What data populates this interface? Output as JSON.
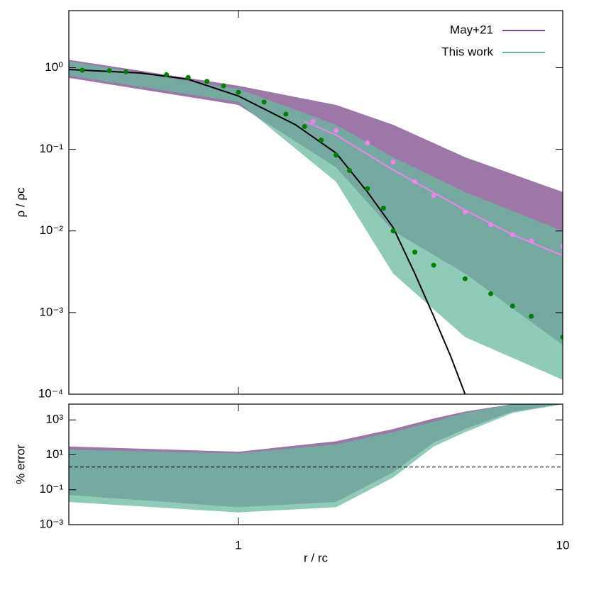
{
  "chart_data": [
    {
      "type": "line",
      "ylabel": "ρ / ρc",
      "xscale": "log",
      "yscale": "log",
      "xlim": [
        0.3,
        10
      ],
      "ylim": [
        0.0001,
        5
      ],
      "xticks": [
        1,
        10
      ],
      "yticks": [
        {
          "value": 1,
          "label": "10⁰"
        },
        {
          "value": 0.1,
          "label": "10⁻¹"
        },
        {
          "value": 0.01,
          "label": "10⁻²"
        },
        {
          "value": 0.001,
          "label": "10⁻³"
        },
        {
          "value": 0.0001,
          "label": "10⁻⁴"
        }
      ],
      "legend": "upper right",
      "series": [
        {
          "name": "May+21",
          "style": "band",
          "color": "#7b4a8b",
          "x": [
            0.3,
            1,
            2,
            3,
            5,
            10
          ],
          "upper": [
            1.25,
            0.6,
            0.35,
            0.2,
            0.08,
            0.03
          ],
          "lower": [
            0.75,
            0.35,
            0.06,
            0.01,
            0.003,
            0.0004
          ]
        },
        {
          "name": "This work",
          "style": "band",
          "color": "#6ab99f",
          "x": [
            0.3,
            1,
            2,
            3,
            5,
            10
          ],
          "upper": [
            1.2,
            0.55,
            0.2,
            0.08,
            0.03,
            0.01
          ],
          "lower": [
            0.8,
            0.38,
            0.04,
            0.003,
            0.0005,
            0.00015
          ]
        },
        {
          "style": "line",
          "color": "#000000",
          "x": [
            0.3,
            0.5,
            0.7,
            1,
            1.5,
            2,
            2.5,
            3,
            3.5,
            4,
            4.5,
            5
          ],
          "values": [
            0.95,
            0.86,
            0.72,
            0.45,
            0.2,
            0.09,
            0.03,
            0.011,
            0.003,
            0.0009,
            0.0003,
            0.0001
          ]
        },
        {
          "style": "line",
          "color": "#ee82ee",
          "x": [
            1.6,
            2,
            3,
            5,
            7,
            10
          ],
          "values": [
            0.22,
            0.15,
            0.056,
            0.018,
            0.009,
            0.005
          ]
        },
        {
          "style": "points",
          "color": "#ee82ee",
          "x": [
            1.7,
            2,
            2.5,
            3,
            3.5,
            4,
            5,
            6,
            7,
            8,
            10
          ],
          "values": [
            0.22,
            0.17,
            0.12,
            0.07,
            0.04,
            0.027,
            0.017,
            0.012,
            0.009,
            0.0075,
            0.0065
          ]
        },
        {
          "style": "points",
          "color": "#008000",
          "x": [
            0.33,
            0.4,
            0.45,
            0.6,
            0.7,
            0.8,
            0.9,
            1,
            1.2,
            1.4,
            1.6,
            1.8,
            2,
            2.2,
            2.5,
            2.8,
            3,
            3.5,
            4,
            5,
            6,
            7,
            8,
            10
          ],
          "values": [
            0.93,
            0.92,
            0.89,
            0.82,
            0.76,
            0.68,
            0.6,
            0.5,
            0.38,
            0.27,
            0.19,
            0.13,
            0.085,
            0.055,
            0.033,
            0.019,
            0.01,
            0.0055,
            0.0038,
            0.0026,
            0.0017,
            0.0012,
            0.0009,
            0.0005
          ]
        }
      ]
    },
    {
      "type": "line",
      "ylabel": "% error",
      "xlabel": "r / rc",
      "xscale": "log",
      "yscale": "log",
      "xlim": [
        0.3,
        10
      ],
      "ylim": [
        0.001,
        8000
      ],
      "xticks": [
        1,
        10
      ],
      "yticks": [
        {
          "value": 1000,
          "label": "10³"
        },
        {
          "value": 10,
          "label": "10¹"
        },
        {
          "value": 0.1,
          "label": "10⁻¹"
        },
        {
          "value": 0.001,
          "label": "10⁻³"
        }
      ],
      "hline": 2,
      "series": [
        {
          "style": "band",
          "color": "#7b4a8b",
          "x": [
            0.3,
            1,
            2,
            3,
            4,
            5,
            7,
            10
          ],
          "upper": [
            30,
            15,
            60,
            300,
            1200,
            3000,
            8000,
            8000
          ],
          "lower": [
            0.05,
            0.01,
            0.02,
            1,
            50,
            300,
            3000,
            8000
          ]
        },
        {
          "style": "band",
          "color": "#6ab99f",
          "x": [
            0.3,
            1,
            2,
            3,
            4,
            5,
            7,
            10
          ],
          "upper": [
            20,
            12,
            40,
            200,
            800,
            2500,
            8000,
            8000
          ],
          "lower": [
            0.02,
            0.005,
            0.01,
            0.5,
            30,
            200,
            2500,
            8000
          ]
        }
      ]
    }
  ]
}
